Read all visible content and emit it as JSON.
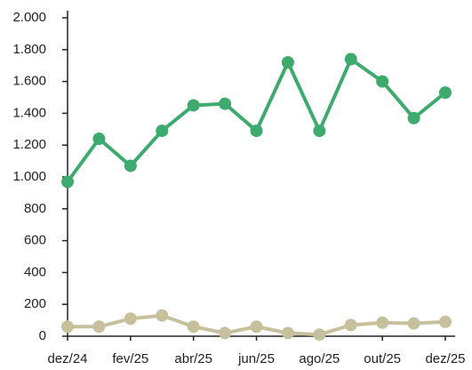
{
  "chart_data": {
    "type": "line",
    "categories": [
      "dez/24",
      null,
      "fev/25",
      null,
      "abr/25",
      null,
      "jun/25",
      null,
      "ago/25",
      null,
      "out/25",
      null,
      "dez/25"
    ],
    "series": [
      {
        "color": "#3daa6e",
        "values": [
          970,
          1240,
          1070,
          1290,
          1450,
          1460,
          1290,
          1720,
          1290,
          1740,
          1600,
          1370,
          1530
        ]
      },
      {
        "color": "#c6c19c",
        "values": [
          60,
          60,
          110,
          130,
          60,
          20,
          60,
          20,
          10,
          70,
          85,
          80,
          90
        ]
      }
    ],
    "ylim": [
      0,
      2000
    ],
    "yticks": [
      0,
      200,
      400,
      600,
      800,
      {
        "value": 1000,
        "label": "1.000"
      },
      {
        "value": 1200,
        "label": "1.200"
      },
      {
        "value": 1400,
        "label": "1.400"
      },
      {
        "value": 1600,
        "label": "1.600"
      },
      {
        "value": 1800,
        "label": "1.800"
      },
      {
        "value": 2000,
        "label": "2.000"
      }
    ]
  }
}
